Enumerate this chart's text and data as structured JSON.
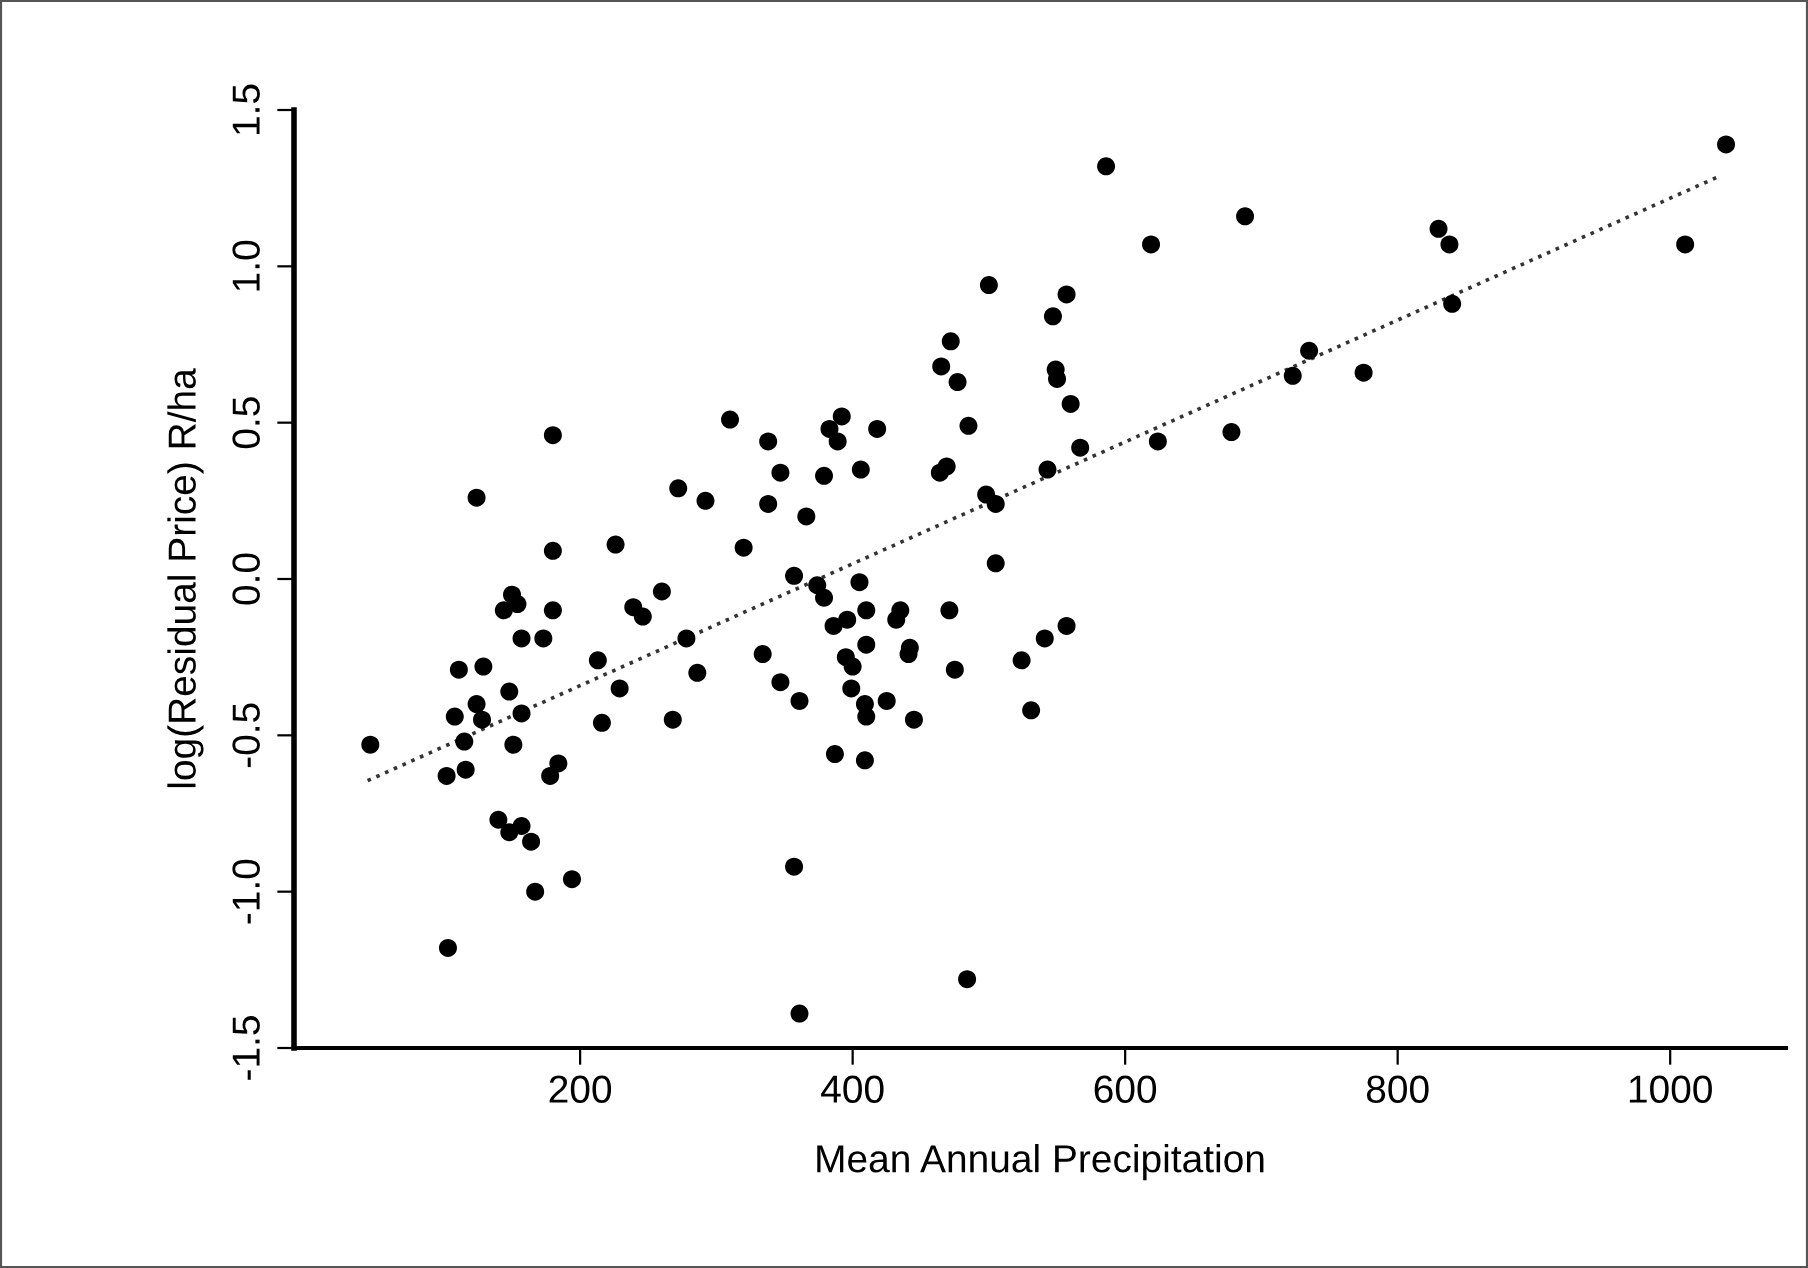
{
  "chart_data": {
    "type": "scatter",
    "xlabel": "Mean Annual Precipitation",
    "ylabel": "log(Residual Price) R/ha",
    "xlim": [
      -10,
      1085
    ],
    "ylim": [
      -1.5,
      1.5
    ],
    "xticks": [
      200,
      400,
      600,
      800,
      1000
    ],
    "yticks": [
      {
        "value": -1.5,
        "label": "-1.5"
      },
      {
        "value": -1.0,
        "label": "-1.0"
      },
      {
        "value": -0.5,
        "label": "-0.5"
      },
      {
        "value": 0.0,
        "label": "0.0"
      },
      {
        "value": 0.5,
        "label": "0.5"
      },
      {
        "value": 1.0,
        "label": "1.0"
      },
      {
        "value": 1.5,
        "label": "1.5"
      }
    ],
    "grid": false,
    "legend": false,
    "series": [
      {
        "color": "#000000",
        "marker": "circle",
        "x": [
          124,
          272,
          292,
          180,
          226,
          320,
          150,
          144,
          154,
          180,
          239,
          246,
          260,
          157,
          173,
          111,
          129,
          213,
          278,
          148,
          229,
          286,
          124,
          108,
          128,
          157,
          216,
          268,
          46,
          115,
          151,
          116,
          102,
          184,
          178,
          140,
          148,
          157,
          164,
          167,
          194,
          103,
          180,
          465,
          477,
          549,
          550,
          560,
          310,
          338,
          392,
          383,
          389,
          418,
          485,
          347,
          379,
          406,
          464,
          469,
          338,
          366,
          498,
          505,
          567,
          543,
          624,
          505,
          357,
          374,
          379,
          405,
          386,
          396,
          410,
          435,
          432,
          471,
          334,
          410,
          395,
          400,
          442,
          441,
          557,
          541,
          524,
          347,
          399,
          475,
          361,
          409,
          410,
          425,
          445,
          531,
          387,
          409,
          357,
          484,
          361,
          586,
          688,
          619,
          830,
          838,
          1041,
          1011,
          500,
          557,
          547,
          472,
          840,
          735,
          723,
          775,
          678
        ],
        "values": [
          0.26,
          0.29,
          0.25,
          0.09,
          0.11,
          0.1,
          -0.05,
          -0.1,
          -0.08,
          -0.1,
          -0.09,
          -0.12,
          -0.04,
          -0.19,
          -0.19,
          -0.29,
          -0.28,
          -0.26,
          -0.19,
          -0.36,
          -0.35,
          -0.3,
          -0.4,
          -0.44,
          -0.45,
          -0.43,
          -0.46,
          -0.45,
          -0.53,
          -0.52,
          -0.53,
          -0.61,
          -0.63,
          -0.59,
          -0.63,
          -0.77,
          -0.81,
          -0.79,
          -0.84,
          -1.0,
          -0.96,
          -1.18,
          0.46,
          0.68,
          0.63,
          0.67,
          0.64,
          0.56,
          0.51,
          0.44,
          0.52,
          0.48,
          0.44,
          0.48,
          0.49,
          0.34,
          0.33,
          0.35,
          0.34,
          0.36,
          0.24,
          0.2,
          0.27,
          0.24,
          0.42,
          0.35,
          0.44,
          0.05,
          0.01,
          -0.02,
          -0.06,
          -0.01,
          -0.15,
          -0.13,
          -0.1,
          -0.1,
          -0.13,
          -0.1,
          -0.24,
          -0.21,
          -0.25,
          -0.28,
          -0.22,
          -0.24,
          -0.15,
          -0.19,
          -0.26,
          -0.33,
          -0.35,
          -0.29,
          -0.39,
          -0.4,
          -0.44,
          -0.39,
          -0.45,
          -0.42,
          -0.56,
          -0.58,
          -0.92,
          -1.28,
          -1.39,
          1.32,
          1.16,
          1.07,
          1.12,
          1.07,
          1.39,
          1.07,
          0.94,
          0.91,
          0.84,
          0.76,
          0.88,
          0.73,
          0.65,
          0.66,
          0.47
        ]
      },
      {
        "type": "line",
        "color": "#333333",
        "line_style": "dotted",
        "marker": "none",
        "x": [
          44,
          1037
        ],
        "values": [
          -0.645,
          1.29
        ]
      }
    ]
  }
}
